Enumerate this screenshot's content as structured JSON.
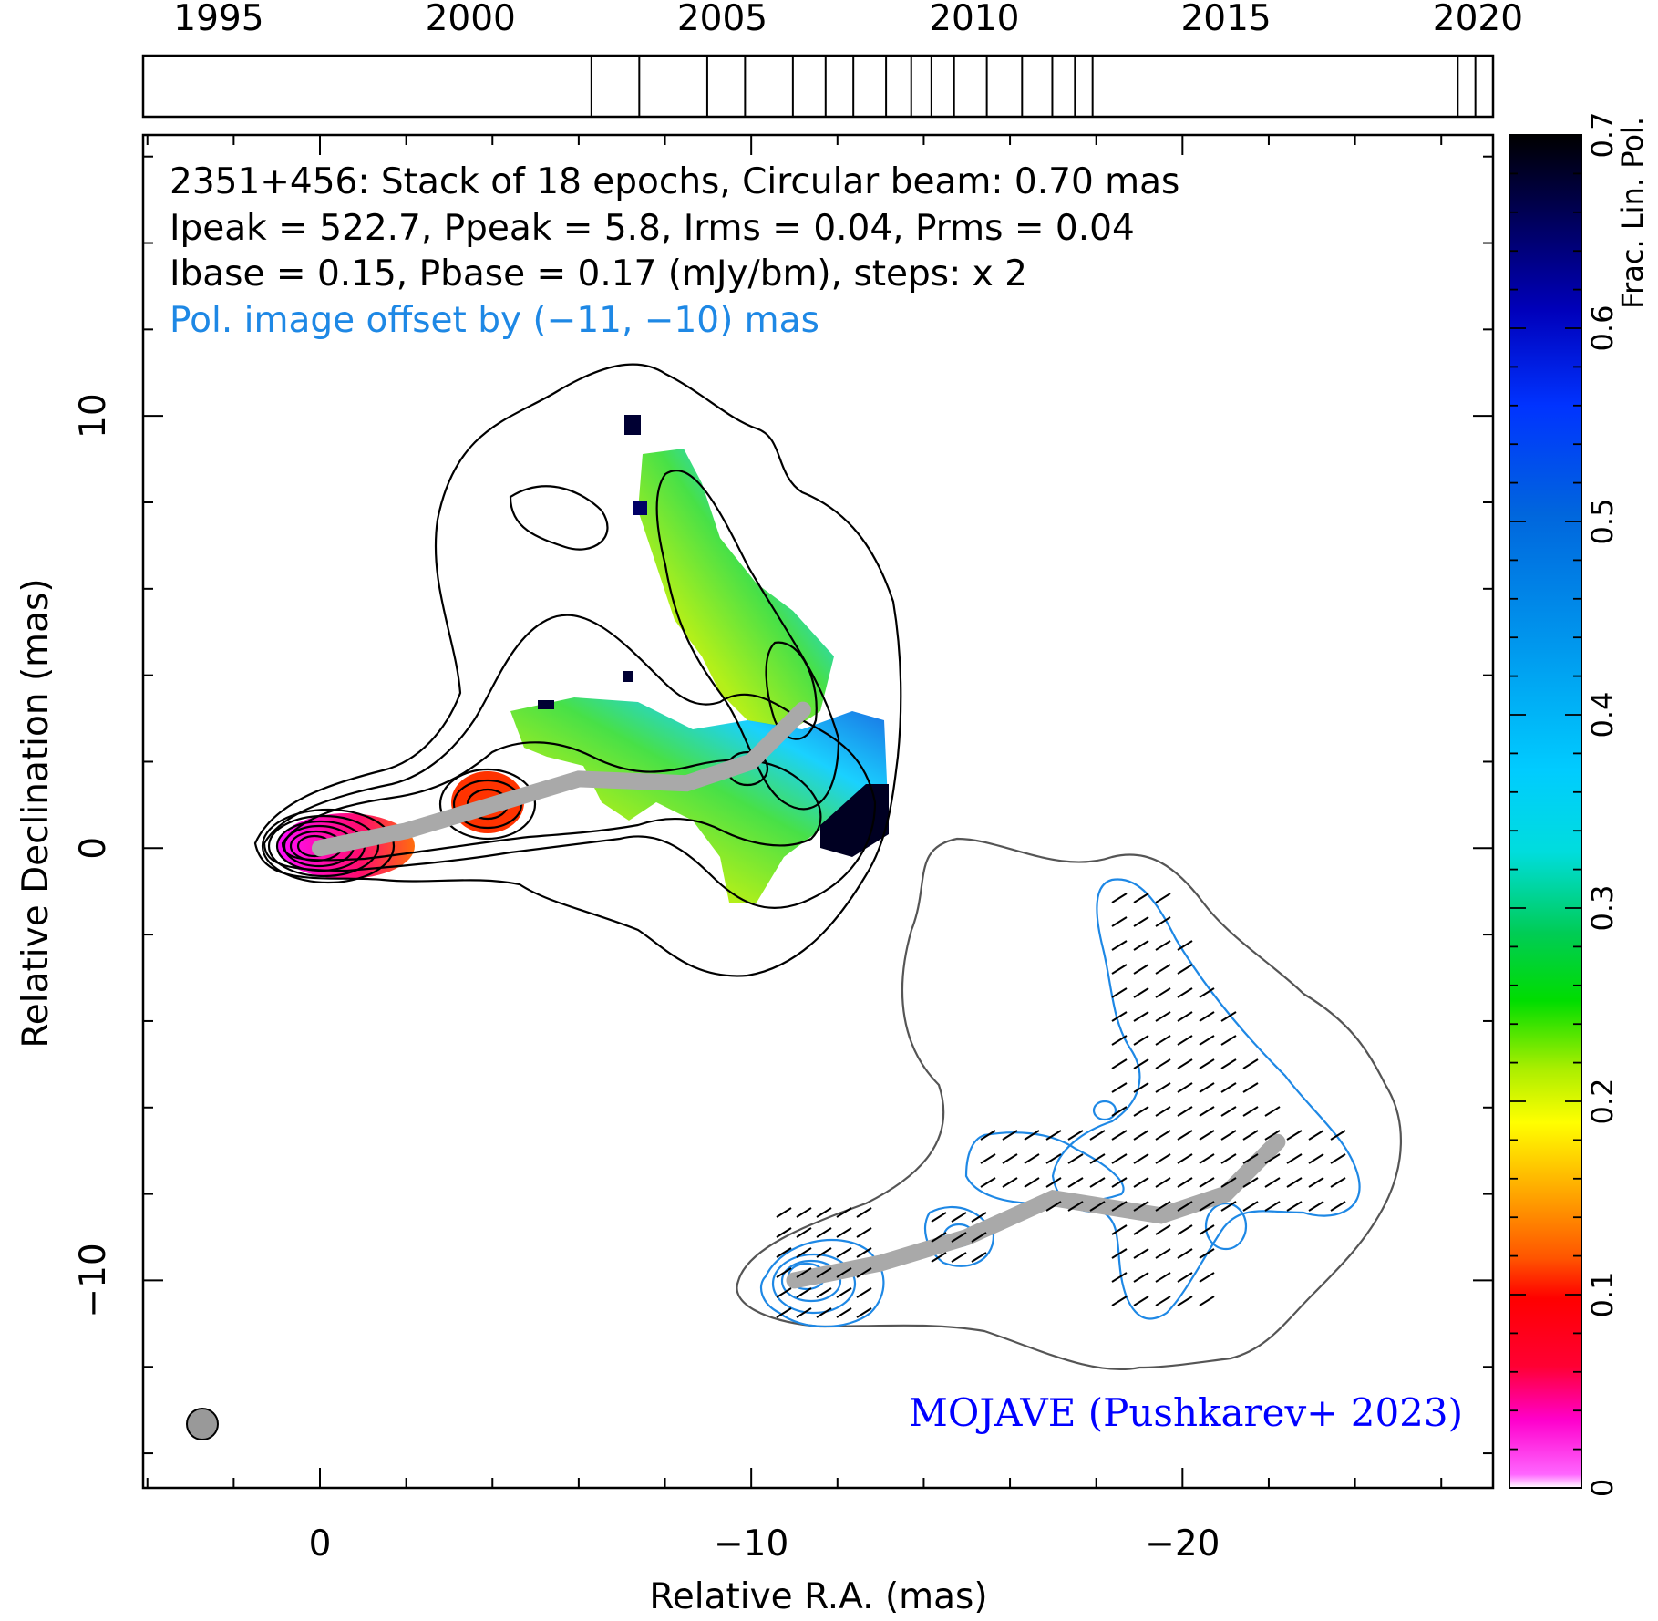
{
  "chart_data": {
    "type": "heatmap",
    "xlabel": "Relative R.A. (mas)",
    "ylabel": "Relative Declination (mas)",
    "xlim": [
      4.1,
      -27.2
    ],
    "ylim": [
      -14.8,
      16.5
    ],
    "x_ticks": [
      0,
      -10,
      -20
    ],
    "x_tick_labels": [
      "0",
      "−10",
      "−20"
    ],
    "y_ticks": [
      10,
      0,
      -10
    ],
    "y_tick_labels": [
      "10",
      "0",
      "−10"
    ],
    "annotations": [
      "2351+456: Stack of 18 epochs, Circular beam: 0.70 mas",
      "Ipeak = 522.7, Ppeak = 5.8, Irms = 0.04, Prms = 0.04",
      "Ibase = 0.15, Pbase = 0.17 (mJy/bm), steps: x 2"
    ],
    "offset_note": "Pol. image offset by (−11, −10) mas",
    "credit": "MOJAVE (Pushkarev+ 2023)",
    "colorbar": {
      "label": "Frac. Lin. Pol.",
      "range": [
        0,
        0.7
      ],
      "ticks": [
        0,
        0.1,
        0.2,
        0.3,
        0.4,
        0.5,
        0.6,
        0.7
      ],
      "tick_labels": [
        "0",
        "0.1",
        "0.2",
        "0.3",
        "0.4",
        "0.5",
        "0.6",
        "0.7"
      ]
    },
    "timeline": {
      "range": [
        1993.5,
        2020.3
      ],
      "year_labels": [
        "1995",
        "2000",
        "2005",
        "2010",
        "2015",
        "2020"
      ],
      "year_values": [
        1995,
        2000,
        2005,
        2010,
        2015,
        2020
      ],
      "epochs": [
        2002.4,
        2003.35,
        2004.7,
        2005.45,
        2006.4,
        2007.05,
        2007.6,
        2008.25,
        2008.75,
        2009.15,
        2009.6,
        2010.25,
        2010.95,
        2011.55,
        2012.0,
        2012.35,
        2019.6,
        2019.95
      ]
    },
    "ridge_line": [
      [
        0,
        0
      ],
      [
        -2,
        0.4
      ],
      [
        -4,
        1.0
      ],
      [
        -6,
        1.6
      ],
      [
        -8.5,
        1.5
      ],
      [
        -10,
        2.0
      ],
      [
        -11.2,
        3.2
      ]
    ],
    "ridge_line_offset": [
      [
        -11,
        -10
      ],
      [
        -13,
        -9.6
      ],
      [
        -15,
        -9
      ],
      [
        -17,
        -8.1
      ],
      [
        -19.5,
        -8.5
      ],
      [
        -21,
        -8
      ],
      [
        -22.2,
        -6.8
      ]
    ],
    "beam_diameter_mas": 0.7,
    "colors": {
      "stokes_i_contour": "#000000",
      "offset_i_contour": "#555555",
      "pol_contour": "#1e88e5",
      "ridge_line": "#a9a9a9",
      "offset_note": "#1e88e5",
      "credit": "#0000ff"
    }
  }
}
